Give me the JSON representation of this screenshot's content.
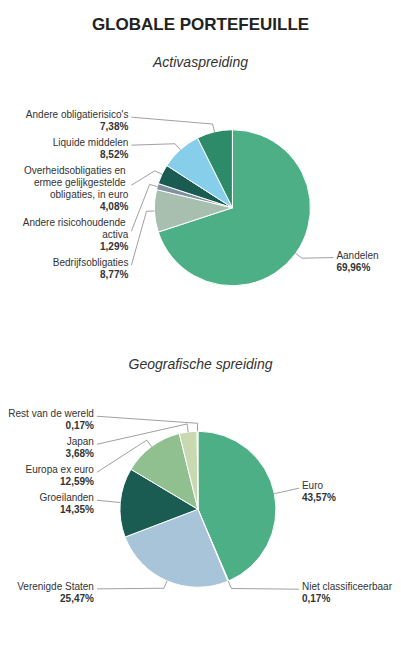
{
  "title": "GLOBALE PORTEFEUILLE",
  "chart_data": [
    {
      "type": "pie",
      "title": "Activaspreiding",
      "categories": [
        "Aandelen",
        "Bedrijfsobligaties",
        "Andere risicohoudende activa",
        "Overheidsobligaties en ermee gelijkgestelde obligaties, in euro",
        "Liquide middelen",
        "Andere obligatierisico's"
      ],
      "values": [
        69.96,
        8.77,
        1.29,
        4.08,
        8.52,
        7.38
      ],
      "value_labels": [
        "69,96%",
        "8,77%",
        "1,29%",
        "4,08%",
        "8,52%",
        "7,38%"
      ],
      "colors": [
        "#4caf85",
        "#a8bfb0",
        "#8090a0",
        "#1a5c52",
        "#87ceeb",
        "#2e8b6a"
      ],
      "data_labels": true
    },
    {
      "type": "pie",
      "title": "Geografische spreiding",
      "categories": [
        "Euro",
        "Niet classificeerbaar",
        "Verenigde Staten",
        "Groeilanden",
        "Europa ex euro",
        "Japan",
        "Rest van de wereld"
      ],
      "values": [
        43.57,
        0.17,
        25.47,
        14.35,
        12.59,
        3.68,
        0.17
      ],
      "value_labels": [
        "43,57%",
        "0,17%",
        "25,47%",
        "14,35%",
        "12,59%",
        "3,68%",
        "0,17%"
      ],
      "colors": [
        "#4caf85",
        "#9ab0b0",
        "#a8c4d8",
        "#1a5c52",
        "#90bf90",
        "#c8d8b0",
        "#b0b8b0"
      ],
      "data_labels": true
    }
  ]
}
